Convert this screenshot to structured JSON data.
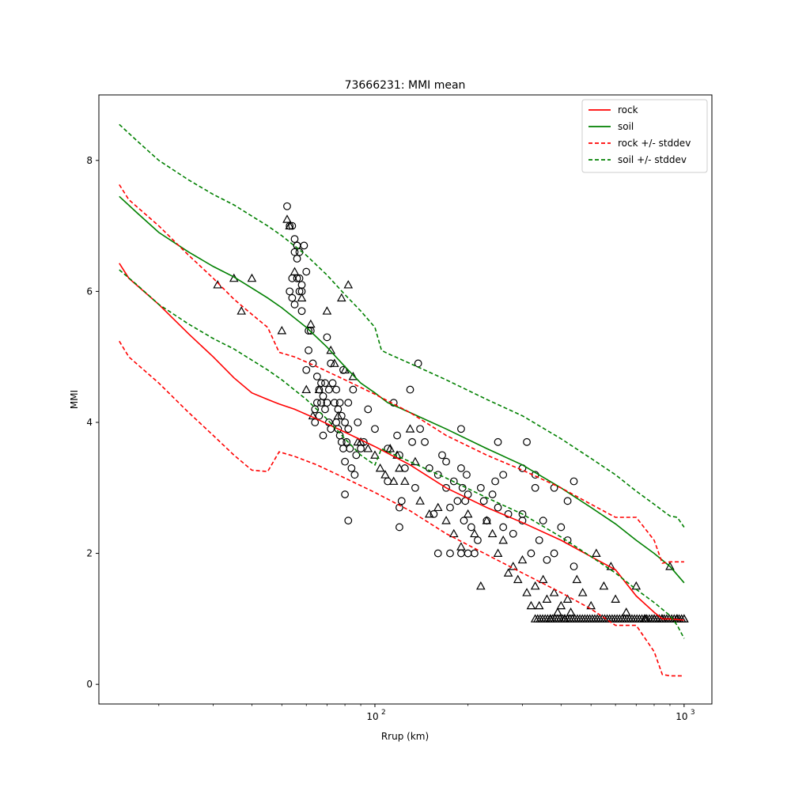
{
  "chart_data": {
    "type": "scatter",
    "title": "73666231: MMI mean",
    "xlabel": "Rrup (km)",
    "ylabel": "MMI",
    "xscale": "log",
    "xlim": [
      12.8,
      1230
    ],
    "ylim": [
      -0.3,
      9.0
    ],
    "x_ticks": [
      {
        "value": 100,
        "base": "10",
        "exp": "2"
      },
      {
        "value": 1000,
        "base": "10",
        "exp": "3"
      }
    ],
    "y_ticks": [
      0,
      2,
      4,
      6,
      8
    ],
    "grid": false,
    "legend_position": "upper right",
    "series": [
      {
        "name": "rock",
        "kind": "line",
        "color": "#ff0000",
        "dashed": false,
        "x": [
          14.9,
          16,
          20,
          25,
          30,
          35,
          40,
          45,
          49,
          55,
          65,
          80,
          100,
          130,
          170,
          230,
          300,
          400,
          500,
          600,
          700,
          800,
          850,
          900,
          1000
        ],
        "y": [
          6.43,
          6.2,
          5.8,
          5.35,
          5.0,
          4.68,
          4.45,
          4.35,
          4.28,
          4.2,
          4.05,
          3.85,
          3.63,
          3.35,
          3.0,
          2.7,
          2.47,
          2.2,
          1.95,
          1.75,
          1.35,
          1.1,
          1.0,
          1.0,
          0.98
        ]
      },
      {
        "name": "soil",
        "kind": "line",
        "color": "#008000",
        "dashed": false,
        "x": [
          14.9,
          17,
          20,
          25,
          30,
          35,
          40,
          45,
          50,
          60,
          70,
          80,
          90,
          100,
          110,
          130,
          170,
          230,
          300,
          400,
          500,
          600,
          700,
          800,
          900,
          1000
        ],
        "y": [
          7.45,
          7.2,
          6.9,
          6.6,
          6.38,
          6.22,
          6.05,
          5.9,
          5.75,
          5.45,
          5.15,
          4.85,
          4.6,
          4.45,
          4.3,
          4.15,
          3.9,
          3.6,
          3.35,
          3.0,
          2.7,
          2.45,
          2.2,
          2.0,
          1.8,
          1.55
        ]
      },
      {
        "name": "rock +/- stddev",
        "kind": "line",
        "color": "#ff0000",
        "dashed": true,
        "x": [
          14.9,
          16,
          20,
          25,
          30,
          35,
          40,
          45,
          49,
          55,
          65,
          80,
          100,
          130,
          170,
          230,
          300,
          400,
          500,
          600,
          700,
          800,
          850,
          900,
          1000
        ],
        "y": [
          7.63,
          7.4,
          7.0,
          6.55,
          6.2,
          5.88,
          5.65,
          5.45,
          5.07,
          5.0,
          4.85,
          4.65,
          4.43,
          4.15,
          3.8,
          3.5,
          3.27,
          3.0,
          2.75,
          2.55,
          2.55,
          2.2,
          1.85,
          1.87,
          1.87
        ]
      },
      {
        "name": "rock +/- stddev (lower)",
        "kind": "line",
        "color": "#ff0000",
        "dashed": true,
        "x": [
          14.9,
          16,
          20,
          25,
          30,
          35,
          40,
          45,
          49,
          55,
          65,
          80,
          100,
          130,
          170,
          230,
          300,
          400,
          500,
          600,
          700,
          800,
          850,
          900,
          1000
        ],
        "y": [
          5.24,
          5.0,
          4.6,
          4.15,
          3.8,
          3.5,
          3.27,
          3.25,
          3.55,
          3.48,
          3.35,
          3.15,
          2.93,
          2.65,
          2.3,
          1.98,
          1.7,
          1.4,
          1.15,
          0.9,
          0.9,
          0.5,
          0.15,
          0.13,
          0.13
        ]
      },
      {
        "name": "soil +/- stddev",
        "kind": "line",
        "color": "#008000",
        "dashed": true,
        "x": [
          14.9,
          17,
          20,
          25,
          30,
          35,
          40,
          45,
          50,
          60,
          70,
          80,
          90,
          100,
          105,
          110,
          130,
          170,
          230,
          300,
          400,
          500,
          600,
          700,
          800,
          900,
          950,
          1000
        ],
        "y": [
          8.55,
          8.3,
          8.0,
          7.7,
          7.48,
          7.32,
          7.15,
          7.0,
          6.85,
          6.55,
          6.25,
          5.95,
          5.7,
          5.45,
          5.1,
          5.05,
          4.9,
          4.65,
          4.35,
          4.1,
          3.75,
          3.45,
          3.2,
          2.95,
          2.75,
          2.57,
          2.55,
          2.4
        ]
      },
      {
        "name": "soil +/- stddev (lower)",
        "kind": "line",
        "color": "#008000",
        "dashed": true,
        "x": [
          14.9,
          17,
          20,
          25,
          30,
          35,
          40,
          45,
          50,
          60,
          70,
          80,
          90,
          100,
          105,
          110,
          130,
          170,
          230,
          300,
          400,
          500,
          600,
          700,
          800,
          900,
          950,
          1000
        ],
        "y": [
          6.33,
          6.1,
          5.8,
          5.5,
          5.28,
          5.12,
          4.95,
          4.8,
          4.65,
          4.35,
          4.05,
          3.75,
          3.5,
          3.35,
          3.6,
          3.55,
          3.4,
          3.15,
          2.85,
          2.6,
          2.25,
          1.95,
          1.7,
          1.45,
          1.25,
          1.05,
          0.9,
          0.7
        ]
      },
      {
        "name": "",
        "kind": "scatter",
        "marker": "circle",
        "x": [
          52,
          53,
          54,
          55,
          55,
          56,
          56,
          57,
          57,
          58,
          53,
          54,
          55,
          56,
          57,
          58,
          59,
          54,
          56,
          58,
          60,
          61,
          62,
          60,
          61,
          63,
          64,
          64,
          65,
          65,
          66,
          66,
          67,
          67,
          68,
          68,
          69,
          69,
          70,
          70,
          71,
          71,
          72,
          72,
          73,
          74,
          75,
          75,
          76,
          76,
          77,
          77,
          78,
          78,
          79,
          79,
          80,
          80,
          81,
          82,
          82,
          83,
          84,
          85,
          86,
          87,
          88,
          90,
          92,
          95,
          100,
          110,
          115,
          118,
          120,
          122,
          125,
          130,
          132,
          135,
          140,
          145,
          150,
          155,
          160,
          165,
          170,
          175,
          180,
          185,
          190,
          192,
          194,
          196,
          198,
          200,
          205,
          210,
          215,
          220,
          225,
          230,
          240,
          245,
          250,
          260,
          270,
          280,
          300,
          320,
          340,
          360,
          380,
          400,
          420,
          440,
          138,
          260,
          300,
          330,
          350
        ],
        "y": [
          7.3,
          7.0,
          7.0,
          6.8,
          6.6,
          6.7,
          6.5,
          6.6,
          6.2,
          6.0,
          6.0,
          5.9,
          5.8,
          6.2,
          6.0,
          6.1,
          6.7,
          6.2,
          6.7,
          5.7,
          6.3,
          5.4,
          5.4,
          4.8,
          5.1,
          4.9,
          4.2,
          4.0,
          4.7,
          4.3,
          4.5,
          4.1,
          4.6,
          4.3,
          4.4,
          3.8,
          4.2,
          4.6,
          4.3,
          5.3,
          4.0,
          4.5,
          4.9,
          3.9,
          4.6,
          4.3,
          4.0,
          4.5,
          3.9,
          4.2,
          4.3,
          3.8,
          4.1,
          3.7,
          3.6,
          4.8,
          4.0,
          3.4,
          3.7,
          4.3,
          3.9,
          3.6,
          3.3,
          4.5,
          3.2,
          3.5,
          4.0,
          3.6,
          3.7,
          4.2,
          3.9,
          3.6,
          4.3,
          3.8,
          3.5,
          2.8,
          3.3,
          4.5,
          3.7,
          3.0,
          3.9,
          3.7,
          3.3,
          2.6,
          3.2,
          3.5,
          3.0,
          2.7,
          3.1,
          2.8,
          3.3,
          3.0,
          2.5,
          2.8,
          3.2,
          2.9,
          2.4,
          2.0,
          2.2,
          3.0,
          2.8,
          2.5,
          2.9,
          3.1,
          2.7,
          2.4,
          2.6,
          2.3,
          2.5,
          2.0,
          2.2,
          1.9,
          2.0,
          2.4,
          2.2,
          1.8,
          4.9,
          3.2,
          2.6,
          3.0,
          2.5
        ],
        "extra_points": [
          [
            82,
            2.5
          ],
          [
            80,
            2.9
          ],
          [
            120,
            2.4
          ],
          [
            120,
            2.7
          ],
          [
            160,
            2.0
          ],
          [
            175,
            2.0
          ],
          [
            190,
            2.0
          ],
          [
            200,
            2.0
          ],
          [
            310,
            3.7
          ],
          [
            330,
            3.2
          ],
          [
            380,
            3.0
          ],
          [
            420,
            2.8
          ],
          [
            440,
            3.1
          ],
          [
            300,
            3.3
          ],
          [
            250,
            3.7
          ],
          [
            190,
            3.9
          ],
          [
            170,
            3.4
          ],
          [
            110,
            3.1
          ]
        ]
      },
      {
        "name": "",
        "kind": "scatter",
        "marker": "triangle",
        "x": [
          52,
          53,
          35,
          37,
          40,
          31,
          50,
          55,
          58,
          60,
          62,
          63,
          66,
          70,
          72,
          74,
          76,
          78,
          80,
          82,
          85,
          88,
          90,
          95,
          100,
          104,
          108,
          112,
          115,
          118,
          120,
          125,
          130,
          135,
          140,
          150,
          160,
          170,
          180,
          190,
          200,
          210,
          220,
          230,
          240,
          250,
          260,
          270,
          280,
          290,
          300,
          310,
          320,
          330,
          340,
          350,
          360,
          370,
          380,
          390,
          400,
          410,
          420,
          430,
          450,
          470,
          500,
          520,
          550,
          580,
          600,
          650,
          700,
          750,
          800,
          850,
          900,
          950,
          1000
        ],
        "y": [
          7.1,
          7.0,
          6.2,
          5.7,
          6.2,
          6.1,
          5.4,
          6.3,
          5.9,
          4.5,
          5.5,
          4.1,
          4.5,
          5.7,
          5.1,
          4.9,
          4.1,
          5.9,
          4.8,
          6.1,
          4.7,
          3.7,
          3.7,
          3.6,
          3.5,
          3.3,
          3.2,
          3.6,
          3.1,
          3.5,
          3.3,
          3.1,
          3.9,
          3.4,
          2.8,
          2.6,
          2.7,
          2.5,
          2.3,
          2.1,
          2.6,
          2.3,
          1.5,
          2.5,
          2.3,
          2.0,
          2.2,
          1.7,
          1.8,
          1.6,
          1.9,
          1.4,
          1.2,
          1.5,
          1.2,
          1.6,
          1.3,
          1.0,
          1.4,
          1.1,
          1.2,
          1.0,
          1.3,
          1.1,
          1.6,
          1.4,
          1.2,
          2.0,
          1.5,
          1.8,
          1.3,
          1.1,
          1.5,
          1.0,
          1.0,
          1.0,
          1.8,
          1.0,
          1.0
        ],
        "floor_band": {
          "x_from": 330,
          "x_to": 1000,
          "y": 1.0
        }
      }
    ]
  }
}
